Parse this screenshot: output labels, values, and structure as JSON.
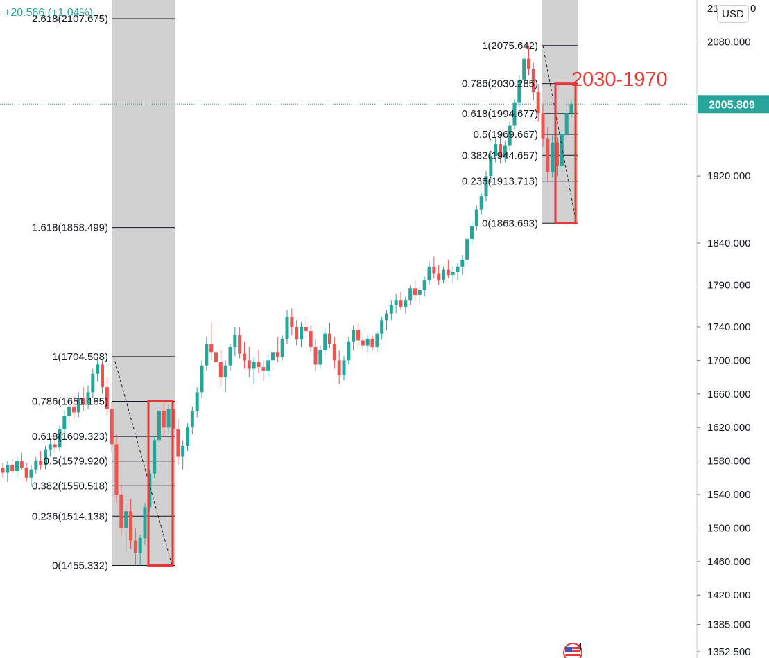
{
  "header": {
    "change_text": "+20.586 (+1.04%)"
  },
  "price_axis": {
    "currency_button": "USD",
    "top_cut_label": "21",
    "top_cut_suffix": "0",
    "ticks": [
      "2080.000",
      "1920.000",
      "1840.000",
      "1790.000",
      "1740.000",
      "1700.000",
      "1660.000",
      "1620.000",
      "1580.000",
      "1540.000",
      "1500.000",
      "1460.000",
      "1420.000",
      "1385.000",
      "1352.500"
    ],
    "current_price": "2005.809"
  },
  "annotation": {
    "text": "2030-1970",
    "color": "#e53935"
  },
  "badge": {
    "text": "4"
  },
  "colors": {
    "up": "#26a69a",
    "down": "#ef5350",
    "fib_line": "#131722",
    "fib_zone": "#d1d1d1",
    "box": "#e53935",
    "current_line": "#26a69a",
    "current_badge": "#26a69a"
  },
  "chart_data": {
    "type": "candlestick",
    "title": "",
    "xlabel": "",
    "ylabel": "",
    "ylim": [
      1345,
      2130
    ],
    "current_price": 2005.809,
    "fib_retracements": [
      {
        "name": "left",
        "levels": [
          {
            "label": "2.618(2107.675)",
            "ratio": 2.618,
            "price": 2107.675
          },
          {
            "label": "1.618(1858.499)",
            "ratio": 1.618,
            "price": 1858.499
          },
          {
            "label": "1(1704.508)",
            "ratio": 1,
            "price": 1704.508
          },
          {
            "label": "0.786(1651.185)",
            "ratio": 0.786,
            "price": 1651.185
          },
          {
            "label": "0.618(1609.323)",
            "ratio": 0.618,
            "price": 1609.323
          },
          {
            "label": "0.5(1579.920)",
            "ratio": 0.5,
            "price": 1579.92
          },
          {
            "label": "0.382(1550.518)",
            "ratio": 0.382,
            "price": 1550.518
          },
          {
            "label": "0.236(1514.138)",
            "ratio": 0.236,
            "price": 1514.138
          },
          {
            "label": "0(1455.332)",
            "ratio": 0,
            "price": 1455.332
          }
        ]
      },
      {
        "name": "right",
        "levels": [
          {
            "label": "1(2075.642)",
            "ratio": 1,
            "price": 2075.642
          },
          {
            "label": "0.786(2030.285)",
            "ratio": 0.786,
            "price": 2030.285
          },
          {
            "label": "0.618(1994.677)",
            "ratio": 0.618,
            "price": 1994.677
          },
          {
            "label": "0.5(1969.667)",
            "ratio": 0.5,
            "price": 1969.667
          },
          {
            "label": "0.382(1944.657)",
            "ratio": 0.382,
            "price": 1944.657
          },
          {
            "label": "0.236(1913.713)",
            "ratio": 0.236,
            "price": 1913.713
          },
          {
            "label": "0(1863.693)",
            "ratio": 0,
            "price": 1863.693
          }
        ]
      }
    ],
    "candles_ohlc": [
      [
        1572,
        1578,
        1560,
        1566
      ],
      [
        1566,
        1580,
        1555,
        1575
      ],
      [
        1575,
        1582,
        1565,
        1568
      ],
      [
        1568,
        1585,
        1560,
        1580
      ],
      [
        1580,
        1590,
        1570,
        1572
      ],
      [
        1572,
        1578,
        1555,
        1560
      ],
      [
        1560,
        1575,
        1550,
        1570
      ],
      [
        1570,
        1585,
        1565,
        1580
      ],
      [
        1580,
        1592,
        1570,
        1575
      ],
      [
        1575,
        1598,
        1570,
        1594
      ],
      [
        1594,
        1608,
        1585,
        1600
      ],
      [
        1600,
        1610,
        1590,
        1596
      ],
      [
        1596,
        1622,
        1592,
        1618
      ],
      [
        1618,
        1640,
        1612,
        1634
      ],
      [
        1634,
        1652,
        1625,
        1645
      ],
      [
        1645,
        1658,
        1630,
        1638
      ],
      [
        1638,
        1662,
        1632,
        1655
      ],
      [
        1655,
        1668,
        1640,
        1648
      ],
      [
        1648,
        1670,
        1642,
        1662
      ],
      [
        1662,
        1690,
        1655,
        1684
      ],
      [
        1684,
        1704,
        1675,
        1695
      ],
      [
        1695,
        1700,
        1660,
        1668
      ],
      [
        1668,
        1680,
        1635,
        1642
      ],
      [
        1642,
        1650,
        1590,
        1600
      ],
      [
        1600,
        1612,
        1530,
        1540
      ],
      [
        1540,
        1552,
        1490,
        1500
      ],
      [
        1500,
        1530,
        1470,
        1520
      ],
      [
        1520,
        1535,
        1475,
        1485
      ],
      [
        1485,
        1500,
        1455,
        1470
      ],
      [
        1470,
        1492,
        1455,
        1488
      ],
      [
        1488,
        1530,
        1480,
        1525
      ],
      [
        1525,
        1570,
        1520,
        1565
      ],
      [
        1565,
        1610,
        1560,
        1605
      ],
      [
        1605,
        1645,
        1600,
        1640
      ],
      [
        1640,
        1650,
        1610,
        1620
      ],
      [
        1620,
        1648,
        1612,
        1642
      ],
      [
        1642,
        1652,
        1610,
        1618
      ],
      [
        1618,
        1630,
        1575,
        1585
      ],
      [
        1585,
        1605,
        1570,
        1598
      ],
      [
        1598,
        1625,
        1592,
        1620
      ],
      [
        1620,
        1645,
        1612,
        1640
      ],
      [
        1640,
        1668,
        1632,
        1662
      ],
      [
        1662,
        1700,
        1655,
        1694
      ],
      [
        1694,
        1728,
        1688,
        1720
      ],
      [
        1720,
        1745,
        1700,
        1710
      ],
      [
        1710,
        1728,
        1690,
        1698
      ],
      [
        1698,
        1712,
        1670,
        1680
      ],
      [
        1680,
        1700,
        1662,
        1694
      ],
      [
        1694,
        1720,
        1688,
        1716
      ],
      [
        1716,
        1740,
        1705,
        1730
      ],
      [
        1730,
        1740,
        1702,
        1708
      ],
      [
        1708,
        1722,
        1690,
        1700
      ],
      [
        1700,
        1716,
        1680,
        1690
      ],
      [
        1690,
        1704,
        1672,
        1698
      ],
      [
        1698,
        1712,
        1685,
        1692
      ],
      [
        1692,
        1700,
        1676,
        1688
      ],
      [
        1688,
        1706,
        1680,
        1700
      ],
      [
        1700,
        1716,
        1692,
        1710
      ],
      [
        1710,
        1728,
        1698,
        1704
      ],
      [
        1704,
        1730,
        1700,
        1726
      ],
      [
        1726,
        1760,
        1720,
        1752
      ],
      [
        1752,
        1762,
        1730,
        1740
      ],
      [
        1740,
        1748,
        1718,
        1725
      ],
      [
        1725,
        1746,
        1716,
        1740
      ],
      [
        1740,
        1752,
        1728,
        1735
      ],
      [
        1735,
        1742,
        1710,
        1716
      ],
      [
        1716,
        1726,
        1688,
        1695
      ],
      [
        1695,
        1718,
        1690,
        1712
      ],
      [
        1712,
        1738,
        1706,
        1732
      ],
      [
        1732,
        1745,
        1715,
        1720
      ],
      [
        1720,
        1728,
        1690,
        1700
      ],
      [
        1700,
        1712,
        1672,
        1682
      ],
      [
        1682,
        1705,
        1676,
        1700
      ],
      [
        1700,
        1728,
        1695,
        1722
      ],
      [
        1722,
        1742,
        1712,
        1736
      ],
      [
        1736,
        1744,
        1718,
        1724
      ],
      [
        1724,
        1732,
        1712,
        1718
      ],
      [
        1718,
        1730,
        1710,
        1726
      ],
      [
        1726,
        1730,
        1712,
        1716
      ],
      [
        1716,
        1735,
        1710,
        1732
      ],
      [
        1732,
        1752,
        1725,
        1748
      ],
      [
        1748,
        1760,
        1736,
        1756
      ],
      [
        1756,
        1772,
        1748,
        1766
      ],
      [
        1766,
        1780,
        1756,
        1772
      ],
      [
        1772,
        1782,
        1760,
        1764
      ],
      [
        1764,
        1776,
        1756,
        1772
      ],
      [
        1772,
        1790,
        1766,
        1786
      ],
      [
        1786,
        1796,
        1772,
        1778
      ],
      [
        1778,
        1788,
        1768,
        1784
      ],
      [
        1784,
        1800,
        1776,
        1796
      ],
      [
        1796,
        1818,
        1790,
        1812
      ],
      [
        1812,
        1824,
        1798,
        1804
      ],
      [
        1804,
        1814,
        1790,
        1796
      ],
      [
        1796,
        1812,
        1792,
        1808
      ],
      [
        1808,
        1820,
        1798,
        1802
      ],
      [
        1802,
        1812,
        1792,
        1806
      ],
      [
        1806,
        1816,
        1796,
        1812
      ],
      [
        1812,
        1826,
        1802,
        1820
      ],
      [
        1820,
        1848,
        1815,
        1845
      ],
      [
        1845,
        1866,
        1838,
        1860
      ],
      [
        1860,
        1885,
        1855,
        1880
      ],
      [
        1880,
        1900,
        1874,
        1896
      ],
      [
        1896,
        1926,
        1890,
        1920
      ],
      [
        1920,
        1950,
        1912,
        1944
      ],
      [
        1944,
        1966,
        1936,
        1958
      ],
      [
        1958,
        1970,
        1935,
        1942
      ],
      [
        1942,
        1962,
        1936,
        1956
      ],
      [
        1956,
        1985,
        1950,
        1980
      ],
      [
        1980,
        2012,
        1975,
        2008
      ],
      [
        2008,
        2040,
        2002,
        2035
      ],
      [
        2035,
        2068,
        2030,
        2060
      ],
      [
        2060,
        2076,
        2040,
        2048
      ],
      [
        2048,
        2055,
        2010,
        2020
      ],
      [
        2020,
        2030,
        1985,
        1995
      ],
      [
        1995,
        2005,
        1955,
        1965
      ],
      [
        1965,
        1978,
        1912,
        1925
      ],
      [
        1925,
        1970,
        1918,
        1960
      ],
      [
        1960,
        1966,
        1920,
        1932
      ],
      [
        1932,
        1975,
        1928,
        1970
      ],
      [
        1970,
        2000,
        1965,
        1995
      ],
      [
        1995,
        2010,
        1990,
        2006
      ]
    ]
  }
}
